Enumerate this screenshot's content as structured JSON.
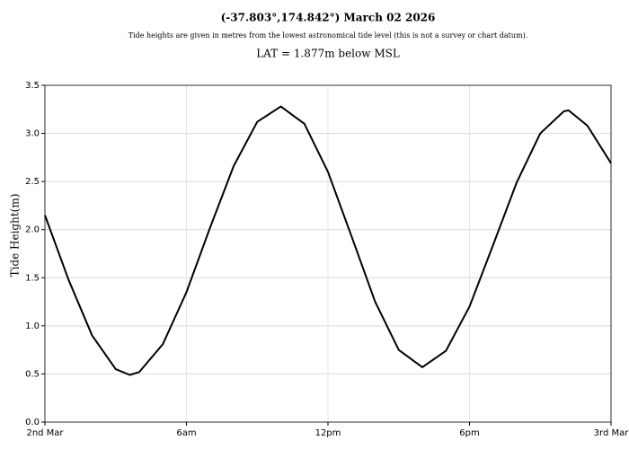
{
  "chart_data": {
    "type": "line",
    "title": "(-37.803°,174.842°) March 02 2026",
    "subtitle": "Tide heights are given in metres from the lowest astronomical tide level (this is not a survey or chart datum).",
    "annotation": "LAT = 1.877m below MSL",
    "ylabel": "Tide Height(m)",
    "x": [
      0,
      1,
      2,
      3,
      3.6,
      4,
      5,
      6,
      7,
      8,
      9,
      10,
      11,
      12,
      13,
      14,
      15,
      16,
      17,
      18,
      19,
      20,
      21,
      22,
      22.2,
      23,
      24
    ],
    "series": [
      {
        "name": "Tide Height",
        "color": "#000000",
        "values": [
          2.15,
          1.48,
          0.9,
          0.55,
          0.49,
          0.52,
          0.81,
          1.35,
          2.02,
          2.66,
          3.12,
          3.28,
          3.1,
          2.6,
          1.93,
          1.25,
          0.75,
          0.57,
          0.74,
          1.2,
          1.84,
          2.49,
          3.0,
          3.23,
          3.24,
          3.08,
          2.69
        ]
      }
    ],
    "xlim": [
      0,
      24
    ],
    "xticks": [
      {
        "value": 0,
        "label": "2nd Mar"
      },
      {
        "value": 6,
        "label": "6am"
      },
      {
        "value": 12,
        "label": "12pm"
      },
      {
        "value": 18,
        "label": "6pm"
      },
      {
        "value": 24,
        "label": "3rd Mar"
      }
    ],
    "ylim": [
      0,
      3.5
    ],
    "yticks": [
      {
        "value": 0,
        "label": "0.0"
      },
      0.5,
      {
        "value": 1,
        "label": "1.0"
      },
      1.5,
      {
        "value": 2,
        "label": "2.0"
      },
      2.5,
      {
        "value": 3,
        "label": "3.0"
      },
      3.5
    ],
    "grid": true
  }
}
